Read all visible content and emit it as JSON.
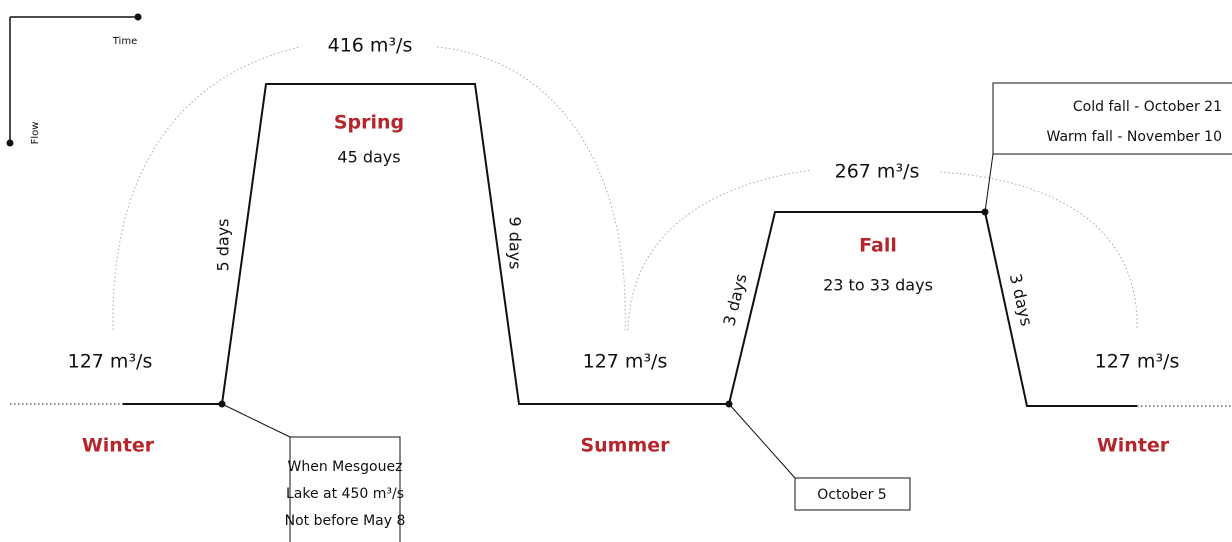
{
  "axes": {
    "x_label": "Time",
    "y_label": "Flow"
  },
  "flows": {
    "winter_start": "127 m³/s",
    "spring_peak": "416 m³/s",
    "summer": "127 m³/s",
    "fall_peak": "267 m³/s",
    "winter_end": "127 m³/s"
  },
  "seasons": {
    "winter_start": "Winter",
    "spring": "Spring",
    "summer": "Summer",
    "fall": "Fall",
    "winter_end": "Winter"
  },
  "durations": {
    "spring": "45 days",
    "fall": "23 to 33 days",
    "spring_rise": "5 days",
    "spring_fall": "9 days",
    "fall_rise": "3 days",
    "fall_drop": "3 days"
  },
  "callouts": {
    "spring_start": [
      "When Mesgouez",
      "Lake at 450 m³/s",
      "Not before May 8"
    ],
    "fall_start": [
      "October 5"
    ],
    "fall_end": [
      "Cold fall - October 21",
      "Warm fall - November 10"
    ]
  }
}
